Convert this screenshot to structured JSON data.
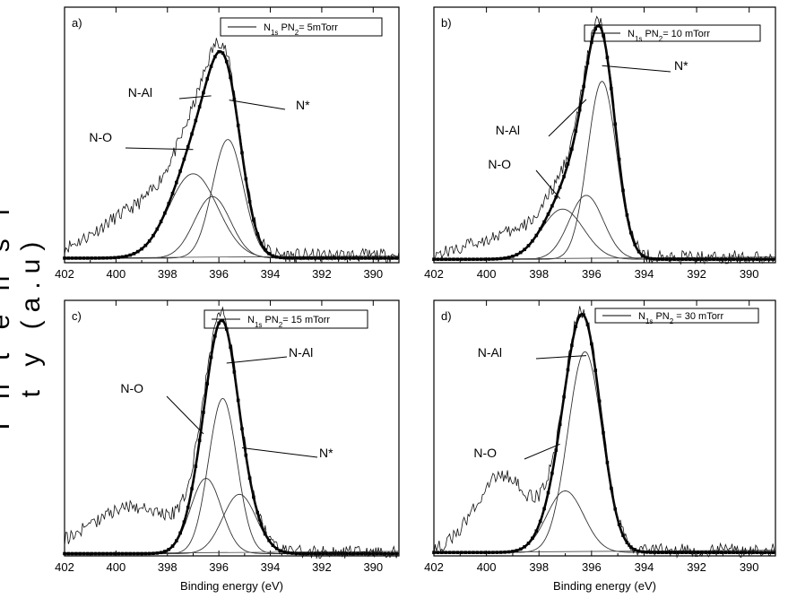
{
  "figure": {
    "ylabel": "Intensity (a.u)",
    "ylabel_display": "I n t e n s i t y (a.u)"
  },
  "chart_data": [
    {
      "type": "line",
      "panel_label": "a)",
      "legend": {
        "label_html": "N1s PN2= 5mTorr",
        "main": "N",
        "sub1": "1s",
        "mid": " PN",
        "sub2": "2",
        "tail": "= 5mTorr"
      },
      "xlabel": "",
      "xlim": [
        402,
        389
      ],
      "ylim": [
        0,
        1.12
      ],
      "xticks": [
        402,
        400,
        398,
        396,
        394,
        392,
        390
      ],
      "baseline": 0.04,
      "components": [
        {
          "name": "N-O",
          "center": 397.0,
          "height": 0.37,
          "width": 0.95
        },
        {
          "name": "N-Al",
          "center": 396.25,
          "height": 0.27,
          "width": 0.7
        },
        {
          "name": "N*",
          "center": 395.65,
          "height": 0.52,
          "width": 0.6
        }
      ],
      "envelope_peak": 0.93,
      "raw_bump": {
        "center": 399.0,
        "height": 0.2,
        "width": 1.6
      },
      "annotations": [
        {
          "text": "N-O",
          "target": 397.0
        },
        {
          "text": "N-Al",
          "target": 396.3
        },
        {
          "text": "N*",
          "target": 395.6
        }
      ]
    },
    {
      "type": "line",
      "panel_label": "b)",
      "legend": {
        "main": "N",
        "sub1": "1s",
        "mid": " PN",
        "sub2": "2",
        "tail": "= 10 mTorr"
      },
      "xlabel": "",
      "xlim": [
        402,
        389
      ],
      "ylim": [
        0,
        1.12
      ],
      "xticks": [
        402,
        400,
        398,
        396,
        394,
        392,
        390
      ],
      "baseline": 0.03,
      "components": [
        {
          "name": "N-O",
          "center": 397.1,
          "height": 0.22,
          "width": 0.8
        },
        {
          "name": "N-Al",
          "center": 396.2,
          "height": 0.28,
          "width": 0.65
        },
        {
          "name": "N*",
          "center": 395.6,
          "height": 0.78,
          "width": 0.55
        }
      ],
      "envelope_peak": 1.02,
      "raw_bump": {
        "center": 399.0,
        "height": 0.1,
        "width": 1.5
      },
      "annotations": [
        {
          "text": "N-O",
          "target": 397.2
        },
        {
          "text": "N-Al",
          "target": 396.2
        },
        {
          "text": "N*",
          "target": 395.6
        }
      ]
    },
    {
      "type": "line",
      "panel_label": "c)",
      "legend": {
        "main": "N",
        "sub1": "1s",
        "mid": " PN",
        "sub2": "2",
        "tail": "= 15 mTorr"
      },
      "xlabel": "Binding energy (eV)",
      "xlim": [
        402,
        389
      ],
      "ylim": [
        0,
        1.12
      ],
      "xticks": [
        402,
        400,
        398,
        396,
        394,
        392,
        390
      ],
      "baseline": 0.02,
      "components": [
        {
          "name": "N-O",
          "center": 396.5,
          "height": 0.33,
          "width": 0.6
        },
        {
          "name": "N-Al",
          "center": 395.85,
          "height": 0.68,
          "width": 0.55
        },
        {
          "name": "N*",
          "center": 395.2,
          "height": 0.26,
          "width": 0.65
        }
      ],
      "envelope_peak": 1.0,
      "raw_bump": {
        "center": 399.3,
        "height": 0.2,
        "width": 1.7
      },
      "annotations": [
        {
          "text": "N-O",
          "target": 396.6
        },
        {
          "text": "N-Al",
          "target": 395.7
        },
        {
          "text": "N*",
          "target": 395.1
        }
      ]
    },
    {
      "type": "line",
      "panel_label": "d)",
      "legend": {
        "main": "N",
        "sub1": "1s",
        "mid": " PN",
        "sub2": "2",
        "tail": " = 30 mTorr"
      },
      "xlabel": "Binding energy (eV)",
      "xlim": [
        402,
        389
      ],
      "ylim": [
        0,
        1.12
      ],
      "xticks": [
        402,
        400,
        398,
        396,
        394,
        392,
        390
      ],
      "baseline": 0.03,
      "components": [
        {
          "name": "N-O",
          "center": 397.0,
          "height": 0.27,
          "width": 0.7
        },
        {
          "name": "N-Al",
          "center": 396.25,
          "height": 0.88,
          "width": 0.65
        }
      ],
      "envelope_peak": 1.03,
      "raw_bump": {
        "center": 399.4,
        "height": 0.33,
        "width": 1.0
      },
      "annotations": [
        {
          "text": "N-O",
          "target": 397.2
        },
        {
          "text": "N-Al",
          "target": 396.2
        }
      ]
    }
  ]
}
